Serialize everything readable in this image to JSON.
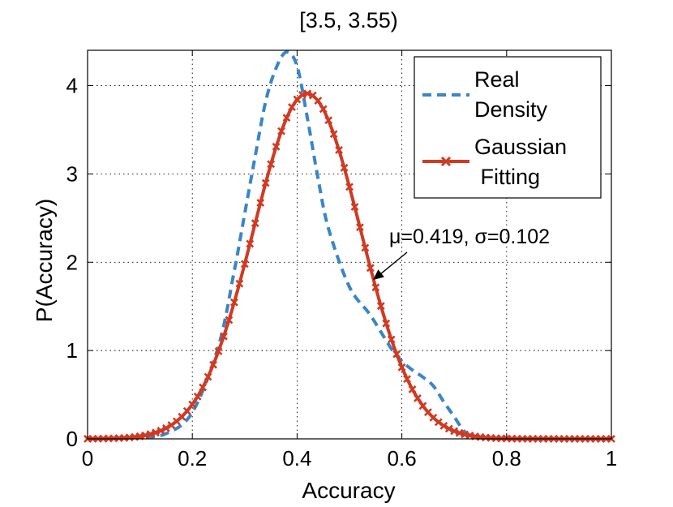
{
  "chart_data": {
    "type": "line",
    "title": "[3.5, 3.55)",
    "xlabel": "Accuracy",
    "ylabel": "P(Accuracy)",
    "xlim": [
      0,
      1
    ],
    "ylim": [
      0,
      4.4
    ],
    "xticks": [
      0,
      0.2,
      0.4,
      0.6,
      0.8,
      1
    ],
    "xtick_labels": [
      "0",
      "0.2",
      "0.4",
      "0.6",
      "0.8",
      "1"
    ],
    "yticks": [
      0,
      1,
      2,
      3,
      4
    ],
    "ytick_labels": [
      "0",
      "1",
      "2",
      "3",
      "4"
    ],
    "grid": true,
    "legend_position": "top-right",
    "series": [
      {
        "name": "Real Density",
        "legend_lines": [
          "Real",
          "Density"
        ],
        "style": "dashed",
        "color": "#3a85c8",
        "x": [
          0,
          0.1,
          0.15,
          0.2,
          0.25,
          0.28,
          0.3,
          0.32,
          0.34,
          0.36,
          0.38,
          0.4,
          0.42,
          0.44,
          0.46,
          0.5,
          0.54,
          0.58,
          0.6,
          0.62,
          0.64,
          0.66,
          0.68,
          0.7,
          0.72,
          0.74,
          0.76,
          0.8,
          0.9,
          1.0
        ],
        "y": [
          0,
          0.02,
          0.06,
          0.3,
          1.05,
          1.9,
          2.55,
          3.2,
          3.82,
          4.2,
          4.38,
          4.22,
          3.62,
          2.95,
          2.38,
          1.72,
          1.4,
          1.02,
          0.88,
          0.78,
          0.7,
          0.6,
          0.42,
          0.25,
          0.08,
          0.02,
          0.01,
          0.0,
          0.0,
          0.0
        ]
      },
      {
        "name": "Gaussian Fitting",
        "legend_lines": [
          "Gaussian",
          " Fitting"
        ],
        "style": "solid-markers",
        "marker": "x",
        "color": "#d03a22",
        "mu": 0.419,
        "sigma": 0.102,
        "x_start": 0,
        "x_end": 1,
        "x_step": 0.01
      }
    ],
    "annotation": {
      "text": "μ=0.419, σ=0.102",
      "arrow_to": {
        "x": 0.545,
        "y": 1.8
      }
    }
  }
}
